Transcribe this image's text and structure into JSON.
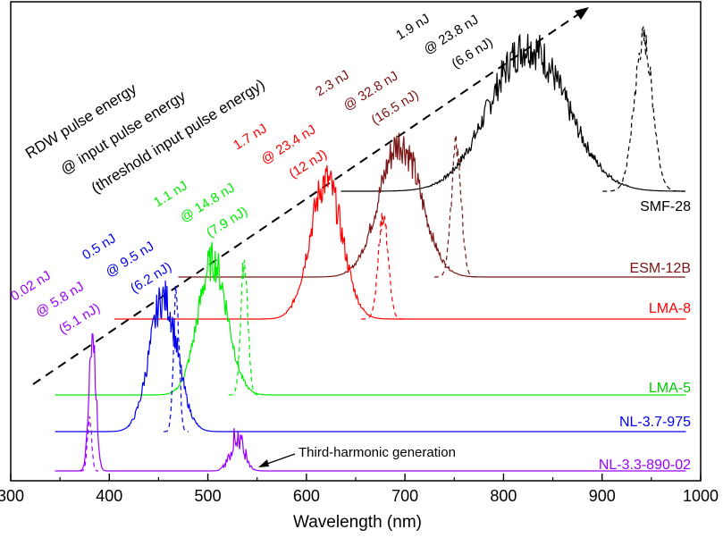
{
  "chart_data": {
    "type": "line",
    "title": "",
    "xlabel": "Wavelength (nm)",
    "ylabel": "",
    "xlim": [
      300,
      1000
    ],
    "xticks": [
      300,
      400,
      500,
      600,
      700,
      800,
      900,
      1000
    ],
    "grid": false,
    "header_lines": [
      "RDW pulse energy",
      "@ input  pulse energy",
      "(threshold input pulse energy)"
    ],
    "annotation": {
      "text": "Third-harmonic generation",
      "points_to_x_nm": 540
    },
    "series": [
      {
        "name": "SMF-28",
        "color": "#000000",
        "x_start": 635,
        "x_end": 985,
        "offset": 5,
        "rdw_peak": {
          "center": 825,
          "width": 55,
          "amplitude": 1.0
        },
        "input_peak": {
          "center": 942,
          "width": 13,
          "amplitude": 1.05
        },
        "labels": [
          "1.9 nJ",
          "@ 23.8 nJ",
          "(6.6 nJ)"
        ]
      },
      {
        "name": "ESM-12B",
        "color": "#7b1414",
        "x_start": 470,
        "x_end": 985,
        "offset": 4,
        "rdw_peak": {
          "center": 695,
          "width": 30,
          "amplitude": 1.0
        },
        "input_peak": {
          "center": 752,
          "width": 7,
          "amplitude": 0.98
        },
        "labels": [
          "2.3 nJ",
          "@ 32.8 nJ",
          "(16.5 nJ)"
        ]
      },
      {
        "name": "LMA-8",
        "color": "#ff0000",
        "x_start": 405,
        "x_end": 985,
        "offset": 3,
        "rdw_peak": {
          "center": 620,
          "width": 23,
          "amplitude": 1.0
        },
        "input_peak": {
          "center": 678,
          "width": 7,
          "amplitude": 0.75
        },
        "labels": [
          "1.7 nJ",
          "@ 23.4 nJ",
          "(12 nJ)"
        ]
      },
      {
        "name": "LMA-5",
        "color": "#00ee00",
        "x_start": 345,
        "x_end": 985,
        "offset": 2,
        "rdw_peak": {
          "center": 505,
          "width": 21,
          "amplitude": 1.0
        },
        "input_peak": {
          "center": 537,
          "width": 5,
          "amplitude": 1.0
        },
        "labels": [
          "1.1 nJ",
          "@ 14.8 nJ",
          "(7.9 nJ)"
        ]
      },
      {
        "name": "NL-3.7-975",
        "color": "#0000ee",
        "x_start": 345,
        "x_end": 985,
        "offset": 1,
        "rdw_peak": {
          "center": 455,
          "width": 20,
          "amplitude": 1.0
        },
        "input_peak": {
          "center": 468,
          "width": 4,
          "amplitude": 1.05
        },
        "labels": [
          "0.5 nJ",
          "@ 9.5 nJ",
          "(6.2 nJ)"
        ]
      },
      {
        "name": "NL-3.3-890-02",
        "color": "#9900ff",
        "x_start": 345,
        "x_end": 985,
        "offset": 0,
        "rdw_peak": {
          "center": 383,
          "width": 5,
          "amplitude": 1.0
        },
        "input_peak": {
          "center": 380,
          "width": 3,
          "amplitude": 0.4
        },
        "thg_peak": {
          "center": 530,
          "width": 10,
          "amplitude": 0.25
        },
        "labels": [
          "0.02 nJ",
          "@ 5.8 nJ",
          "(5.1 nJ)"
        ]
      }
    ]
  }
}
